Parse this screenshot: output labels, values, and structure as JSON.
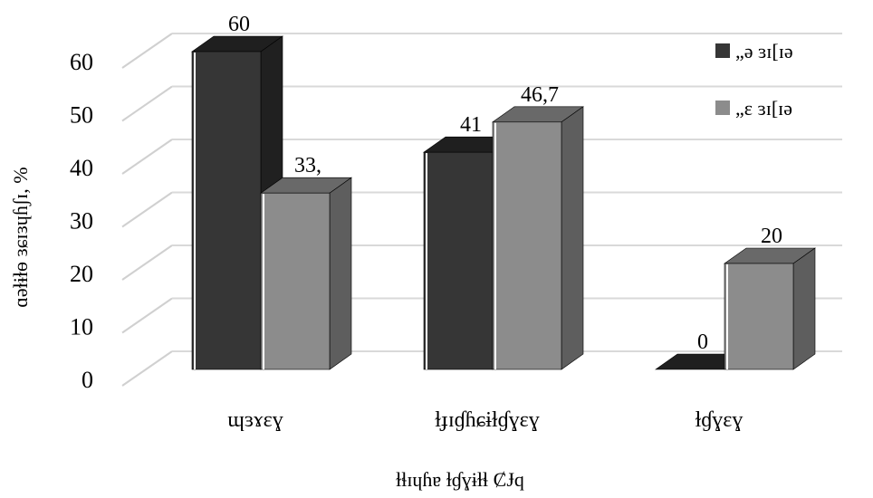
{
  "chart_data": {
    "type": "bar",
    "categories": [
      "ɰɜɤɛɣ",
      "ɫɟɪɠɦɕɨɫɠɣɛɣ",
      "ɫɠɣɛɣ"
    ],
    "series": [
      {
        "name": "„ə ɜɪ[ɪə",
        "values": [
          60,
          41,
          0
        ],
        "labels": [
          "60",
          "41",
          "0"
        ],
        "color": "#363636"
      },
      {
        "name": "„ɛ ɜɪ[ɪə",
        "values": [
          33.3,
          46.7,
          20
        ],
        "labels": [
          "33,",
          "46,7",
          "20"
        ],
        "color": "#8c8c8c"
      }
    ],
    "ylim": [
      0,
      60
    ],
    "yticks": [
      0,
      10,
      20,
      30,
      40,
      50,
      60
    ],
    "ylabel": "ɑəɫɨɫɵ ɜɕɪɜɥɦʃɪ, %",
    "xlabel": "ɫɬɪɥɦɐ ɫɠɣɨɫɬ ȻɈq",
    "grid": true,
    "legend_position": "top-right"
  }
}
